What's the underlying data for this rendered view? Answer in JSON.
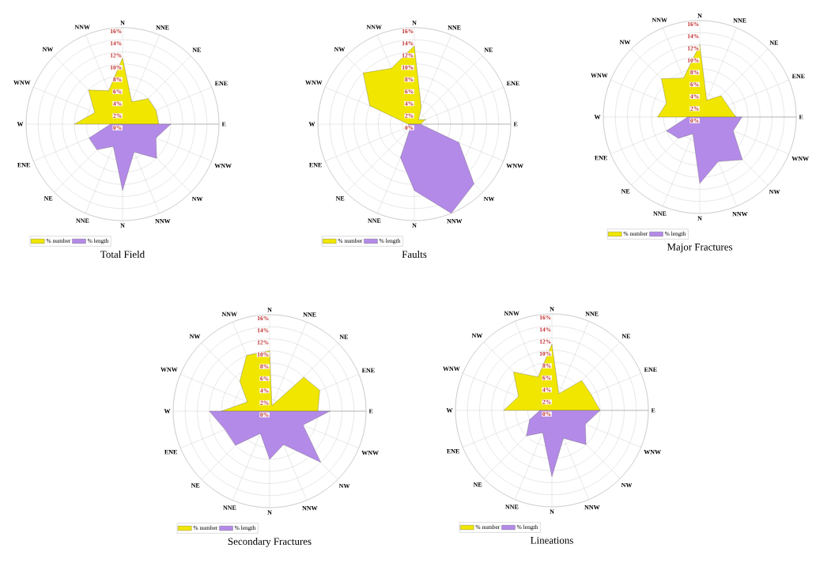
{
  "chart_data": [
    {
      "type": "radar",
      "title": "Total Field",
      "categories": [
        "N",
        "NNE",
        "NE",
        "ENE",
        "E",
        "WNW",
        "NW",
        "NNW",
        "N",
        "NNE",
        "NE",
        "ENE",
        "W",
        "WNW",
        "NW",
        "NNW"
      ],
      "ylim": [
        0,
        16
      ],
      "yticks": [
        {
          "value": 0,
          "label": "0%"
        },
        {
          "value": 2,
          "label": "2%"
        },
        {
          "value": 4,
          "label": "4%"
        },
        {
          "value": 6,
          "label": "6%"
        },
        {
          "value": 8,
          "label": "8%"
        },
        {
          "value": 10,
          "label": "10%"
        },
        {
          "value": 12,
          "label": "12%"
        },
        {
          "value": 14,
          "label": "14%"
        },
        {
          "value": 16,
          "label": "16%"
        }
      ],
      "grid": true,
      "legend": "bottom left",
      "series": [
        {
          "name": "% number",
          "color": "#f0e600",
          "values": [
            11,
            4,
            6,
            6,
            6,
            null,
            null,
            null,
            null,
            null,
            null,
            null,
            8,
            5,
            8,
            6
          ]
        },
        {
          "name": "% length",
          "color": "#b48ae8",
          "values": [
            null,
            null,
            null,
            null,
            8,
            6,
            8,
            5,
            11,
            4,
            6,
            6,
            2,
            null,
            null,
            null
          ]
        }
      ]
    },
    {
      "type": "radar",
      "title": "Faults",
      "categories": [
        "N",
        "NNE",
        "NE",
        "ENE",
        "E",
        "WNW",
        "NW",
        "NNW",
        "N",
        "NNE",
        "NE",
        "ENE",
        "W",
        "WNW",
        "NW",
        "NNW"
      ],
      "ylim": [
        0,
        16
      ],
      "yticks": [
        {
          "value": 0,
          "label": "0%"
        },
        {
          "value": 2,
          "label": "2%"
        },
        {
          "value": 4,
          "label": "4%"
        },
        {
          "value": 6,
          "label": "6%"
        },
        {
          "value": 8,
          "label": "8%"
        },
        {
          "value": 10,
          "label": "10%"
        },
        {
          "value": 12,
          "label": "12%"
        },
        {
          "value": 14,
          "label": "14%"
        },
        {
          "value": 16,
          "label": "16%"
        }
      ],
      "grid": true,
      "legend": "bottom left",
      "series": [
        {
          "name": "% number",
          "color": "#f0e600",
          "values": [
            13,
            3,
            1,
            2,
            1,
            null,
            null,
            null,
            null,
            null,
            null,
            null,
            1,
            8,
            12,
            10
          ]
        },
        {
          "name": "% length",
          "color": "#b48ae8",
          "values": [
            null,
            null,
            null,
            null,
            1,
            8,
            14,
            16,
            11,
            6,
            1,
            1,
            1,
            null,
            null,
            null
          ]
        }
      ]
    },
    {
      "type": "radar",
      "title": "Major Fractures",
      "categories": [
        "N",
        "NNE",
        "NE",
        "ENE",
        "E",
        "WNW",
        "NW",
        "NNW",
        "N",
        "NNE",
        "NE",
        "ENE",
        "W",
        "WNW",
        "NW",
        "NNW"
      ],
      "ylim": [
        0,
        16
      ],
      "yticks": [
        {
          "value": 0,
          "label": "0%"
        },
        {
          "value": 2,
          "label": "2%"
        },
        {
          "value": 4,
          "label": "4%"
        },
        {
          "value": 6,
          "label": "6%"
        },
        {
          "value": 8,
          "label": "8%"
        },
        {
          "value": 10,
          "label": "10%"
        },
        {
          "value": 12,
          "label": "12%"
        },
        {
          "value": 14,
          "label": "14%"
        },
        {
          "value": 16,
          "label": "16%"
        }
      ],
      "grid": true,
      "legend": "bottom left",
      "series": [
        {
          "name": "% number",
          "color": "#f0e600",
          "values": [
            12,
            3,
            5,
            5,
            6,
            null,
            null,
            null,
            null,
            null,
            null,
            null,
            7,
            6,
            9,
            7
          ]
        },
        {
          "name": "% length",
          "color": "#b48ae8",
          "values": [
            null,
            null,
            null,
            null,
            7,
            6,
            10,
            8,
            11,
            3,
            5,
            6,
            2,
            null,
            null,
            null
          ]
        }
      ]
    },
    {
      "type": "radar",
      "title": "Secondary Fractures",
      "categories": [
        "N",
        "NNE",
        "NE",
        "ENE",
        "E",
        "WNW",
        "NW",
        "NNW",
        "N",
        "NNE",
        "NE",
        "ENE",
        "W",
        "WNW",
        "NW",
        "NNW"
      ],
      "ylim": [
        0,
        16
      ],
      "yticks": [
        {
          "value": 0,
          "label": "0%"
        },
        {
          "value": 2,
          "label": "2%"
        },
        {
          "value": 4,
          "label": "4%"
        },
        {
          "value": 6,
          "label": "6%"
        },
        {
          "value": 8,
          "label": "8%"
        },
        {
          "value": 10,
          "label": "10%"
        },
        {
          "value": 12,
          "label": "12%"
        },
        {
          "value": 14,
          "label": "14%"
        },
        {
          "value": 16,
          "label": "16%"
        }
      ],
      "grid": true,
      "legend": "bottom left",
      "series": [
        {
          "name": "% number",
          "color": "#f0e600",
          "values": [
            10,
            1,
            8,
            9,
            8,
            null,
            null,
            null,
            null,
            null,
            null,
            null,
            8,
            4,
            7,
            10
          ]
        },
        {
          "name": "% length",
          "color": "#b48ae8",
          "values": [
            null,
            null,
            null,
            null,
            10,
            6,
            12,
            6,
            8,
            4,
            8,
            8,
            10,
            null,
            null,
            null
          ]
        }
      ]
    },
    {
      "type": "radar",
      "title": "Lineations",
      "categories": [
        "N",
        "NNE",
        "NE",
        "ENE",
        "E",
        "WNW",
        "NW",
        "NNW",
        "N",
        "NNE",
        "NE",
        "ENE",
        "W",
        "WNW",
        "NW",
        "NNW"
      ],
      "ylim": [
        0,
        16
      ],
      "yticks": [
        {
          "value": 0,
          "label": "0%"
        },
        {
          "value": 2,
          "label": "2%"
        },
        {
          "value": 4,
          "label": "4%"
        },
        {
          "value": 6,
          "label": "6%"
        },
        {
          "value": 8,
          "label": "8%"
        },
        {
          "value": 10,
          "label": "10%"
        },
        {
          "value": 12,
          "label": "12%"
        },
        {
          "value": 14,
          "label": "14%"
        },
        {
          "value": 16,
          "label": "16%"
        }
      ],
      "grid": true,
      "legend": "bottom left",
      "series": [
        {
          "name": "% number",
          "color": "#f0e600",
          "values": [
            11,
            3,
            7,
            7,
            8,
            null,
            null,
            null,
            null,
            null,
            null,
            null,
            8,
            6,
            9,
            6
          ]
        },
        {
          "name": "% length",
          "color": "#b48ae8",
          "values": [
            null,
            null,
            null,
            null,
            8,
            6,
            8,
            5,
            11,
            4,
            6,
            4,
            2,
            null,
            null,
            null
          ]
        }
      ]
    }
  ]
}
